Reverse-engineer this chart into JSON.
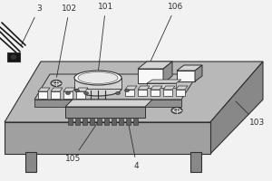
{
  "bg_color": "#f2f2f2",
  "table_top_color": "#b8b8b8",
  "table_right_color": "#888888",
  "table_front_color": "#a0a0a0",
  "pcb_color": "#c0c0c0",
  "pcb_edge_color": "#909090",
  "dark": "#303030",
  "white": "#f8f8f8",
  "light_gray": "#d4d4d4",
  "med_gray": "#909090",
  "dark_gray": "#606060",
  "leg_color": "#888888",
  "figsize": [
    3.0,
    2.0
  ],
  "dpi": 100
}
